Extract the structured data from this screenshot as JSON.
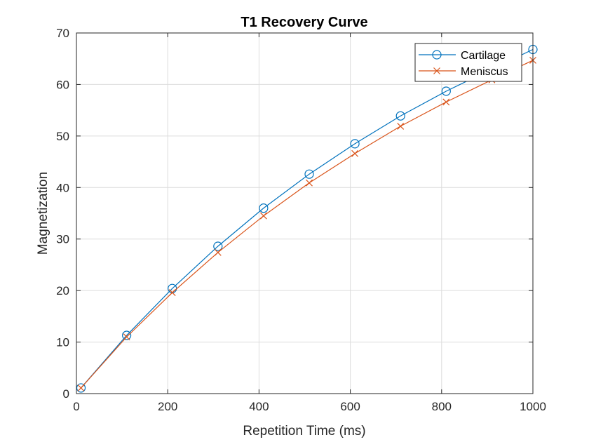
{
  "chart_data": {
    "type": "line",
    "title": "T1 Recovery Curve",
    "xlabel": "Repetition Time (ms)",
    "ylabel": "Magnetization",
    "xlim": [
      0,
      1000
    ],
    "ylim": [
      0,
      70
    ],
    "xticks": [
      0,
      200,
      400,
      600,
      800,
      1000
    ],
    "yticks": [
      0,
      10,
      20,
      30,
      40,
      50,
      60,
      70
    ],
    "grid": true,
    "box": true,
    "legend_position": "top-right",
    "x": [
      10,
      110,
      210,
      310,
      410,
      510,
      610,
      710,
      810,
      910,
      1000
    ],
    "series": [
      {
        "name": "Cartilage",
        "color": "#0072BD",
        "marker": "circle",
        "values": [
          1.1,
          11.3,
          20.4,
          28.6,
          36.0,
          42.6,
          48.5,
          53.9,
          58.7,
          63.0,
          66.8
        ]
      },
      {
        "name": "Meniscus",
        "color": "#D95319",
        "marker": "x",
        "values": [
          1.1,
          11.0,
          19.6,
          27.4,
          34.5,
          40.9,
          46.6,
          51.9,
          56.6,
          60.9,
          64.7
        ]
      }
    ]
  }
}
